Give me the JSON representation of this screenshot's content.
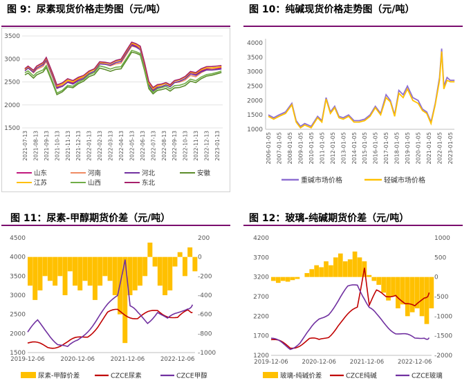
{
  "charts": [
    {
      "title": "图 9：尿素现货价格走势图（元/吨）",
      "chart_data": {
        "type": "line",
        "ylim": [
          1500,
          3500
        ],
        "yticks": [
          1500,
          2000,
          2500,
          3000,
          3500
        ],
        "xticks": [
          "2021-07-13",
          "2021-08-13",
          "2021-09-13",
          "2021-10-13",
          "2021-11-13",
          "2021-12-13",
          "2022-01-13",
          "2022-02-13",
          "2022-03-13",
          "2022-04-13",
          "2022-05-13",
          "2022-06-13",
          "2022-07-13",
          "2022-08-13",
          "2022-09-13",
          "2022-10-13",
          "2022-11-13",
          "2022-12-13",
          "2023-01-13"
        ],
        "grid": true,
        "legend_position": "bottom",
        "x": [
          0,
          0.3,
          0.8,
          1.1,
          1.7,
          2.0,
          2.6,
          3.0,
          3.5,
          4.0,
          4.5,
          5.0,
          5.5,
          6.0,
          6.5,
          7.0,
          7.5,
          8.0,
          8.5,
          9.0,
          9.5,
          10.0,
          10.4,
          10.8,
          11.2,
          11.6,
          12.0,
          12.4,
          12.8,
          13.2,
          13.6,
          14.0,
          14.5,
          15.0,
          15.5,
          16.0,
          16.5,
          17.0,
          17.5,
          18.0,
          18.4
        ],
        "base": [
          2750,
          2800,
          2700,
          2780,
          2850,
          2950,
          2600,
          2350,
          2400,
          2500,
          2470,
          2550,
          2600,
          2700,
          2750,
          2900,
          2880,
          2850,
          2900,
          2920,
          3100,
          3280,
          3250,
          3200,
          2850,
          2450,
          2330,
          2400,
          2420,
          2450,
          2400,
          2480,
          2500,
          2550,
          2650,
          2620,
          2700,
          2750,
          2760,
          2780,
          2800
        ],
        "series": [
          {
            "name": "山东",
            "color": "#c0177d",
            "offset": 30
          },
          {
            "name": "河南",
            "color": "#ef8a62",
            "offset": 15
          },
          {
            "name": "河北",
            "color": "#7030a0",
            "offset": 0
          },
          {
            "name": "安徽",
            "color": "#5b8c2a",
            "offset": -110
          },
          {
            "name": "江苏",
            "color": "#ffc000",
            "offset": 40
          },
          {
            "name": "山西",
            "color": "#70ad47",
            "offset": -70
          },
          {
            "name": "东北",
            "color": "#a6206a",
            "offset": 60
          }
        ]
      }
    },
    {
      "title": "图 10：纯碱现货价格走势图（元/吨）",
      "chart_data": {
        "type": "line",
        "ylim": [
          1000,
          4000
        ],
        "yticks": [
          1000,
          1500,
          2000,
          2500,
          3000,
          3500,
          4000
        ],
        "xticks": [
          "2006-01-05",
          "2007-01-05",
          "2008-01-05",
          "2009-01-05",
          "2010-01-05",
          "2011-01-05",
          "2012-01-05",
          "2013-01-05",
          "2014-01-05",
          "2015-01-05",
          "2016-01-05",
          "2017-01-05",
          "2018-01-05",
          "2019-01-05",
          "2020-01-05",
          "2021-01-05",
          "2022-01-05",
          "2023-01-05"
        ],
        "grid": false,
        "legend_position": "bottom",
        "x": [
          0,
          0.5,
          1.0,
          1.6,
          2.2,
          2.6,
          3.0,
          3.4,
          4.0,
          4.6,
          5.0,
          5.4,
          5.8,
          6.2,
          6.6,
          7.0,
          7.5,
          8.0,
          8.5,
          9.0,
          9.5,
          10.0,
          10.5,
          11.0,
          11.4,
          11.8,
          12.2,
          12.6,
          13.0,
          13.5,
          14.0,
          14.4,
          14.8,
          15.2,
          15.6,
          16.0,
          16.2,
          16.4,
          16.7,
          17.0,
          17.4
        ],
        "series": [
          {
            "name": "重碱市场价格",
            "color": "#8e6fd1",
            "values": [
              1500,
              1400,
              1500,
              1600,
              1900,
              1300,
              1100,
              1200,
              1100,
              1450,
              1300,
              2100,
              1600,
              1800,
              1450,
              1400,
              1500,
              1300,
              1300,
              1350,
              1500,
              1800,
              1550,
              2200,
              2000,
              1500,
              2350,
              2200,
              2500,
              2100,
              2000,
              1700,
              1600,
              1250,
              1900,
              2800,
              3800,
              2500,
              2800,
              2700,
              2700
            ]
          },
          {
            "name": "轻碱市场价格",
            "color": "#ffc000",
            "values": [
              1450,
              1350,
              1450,
              1550,
              1850,
              1250,
              1050,
              1150,
              1050,
              1400,
              1250,
              2050,
              1550,
              1750,
              1400,
              1350,
              1450,
              1250,
              1250,
              1300,
              1450,
              1750,
              1500,
              2100,
              1950,
              1450,
              2250,
              2100,
              2400,
              2000,
              1900,
              1650,
              1550,
              1200,
              1850,
              2700,
              3700,
              2400,
              2700,
              2650,
              2650
            ]
          }
        ]
      }
    },
    {
      "title": "图 11：尿素-甲醇期货价差（元/吨）",
      "chart_data": {
        "type": "bar+line",
        "ylim_left": [
          1500,
          4500
        ],
        "yticks_left": [
          1500,
          2000,
          2500,
          3000,
          3500,
          4000,
          4500
        ],
        "ylim_right": [
          -1000,
          200
        ],
        "yticks_right": [
          -1000,
          -800,
          -600,
          -400,
          -200,
          0,
          200
        ],
        "xticks": [
          "2019-12-06",
          "2020-12-06",
          "2021-12-06",
          "2022-12-06"
        ],
        "xlim": [
          0,
          3.35
        ],
        "legend_position": "bottom",
        "spread": {
          "name": "尿素-甲醇价差",
          "color": "#ffc000",
          "x": [
            0,
            0.1,
            0.2,
            0.3,
            0.4,
            0.5,
            0.6,
            0.7,
            0.8,
            0.9,
            1.0,
            1.1,
            1.2,
            1.3,
            1.4,
            1.5,
            1.6,
            1.7,
            1.8,
            1.9,
            2.0,
            2.1,
            2.2,
            2.3,
            2.4,
            2.5,
            2.6,
            2.7,
            2.8,
            2.9,
            3.0,
            3.1,
            3.2,
            3.3
          ],
          "values": [
            -300,
            -450,
            -350,
            -200,
            -250,
            -300,
            -200,
            -400,
            -150,
            -300,
            -350,
            -250,
            -300,
            -450,
            -300,
            -200,
            -250,
            -400,
            -600,
            -900,
            -400,
            -350,
            -300,
            -200,
            150,
            -100,
            -300,
            -400,
            -350,
            -100,
            50,
            -200,
            100,
            -150
          ]
        },
        "series": [
          {
            "name": "CZCE尿素",
            "color": "#c00000",
            "axis": "left",
            "x": [
              0,
              0.2,
              0.4,
              0.6,
              0.8,
              1.0,
              1.2,
              1.4,
              1.6,
              1.8,
              2.0,
              2.2,
              2.4,
              2.6,
              2.8,
              3.0,
              3.2,
              3.3
            ],
            "values": [
              1750,
              1700,
              1650,
              1700,
              1750,
              1850,
              1950,
              2200,
              2500,
              2600,
              2500,
              2400,
              2500,
              2600,
              2500,
              2400,
              2550,
              2550
            ]
          },
          {
            "name": "CZCE甲醇",
            "color": "#7030a0",
            "axis": "left",
            "x": [
              0,
              0.2,
              0.4,
              0.6,
              0.8,
              1.0,
              1.2,
              1.4,
              1.6,
              1.8,
              1.95,
              2.05,
              2.2,
              2.4,
              2.6,
              2.8,
              3.0,
              3.2,
              3.3
            ],
            "values": [
              2000,
              2300,
              2050,
              1750,
              1600,
              1800,
              2100,
              2400,
              2700,
              3000,
              4000,
              2700,
              2500,
              2300,
              2600,
              2350,
              2500,
              2700,
              2750
            ]
          }
        ]
      }
    },
    {
      "title": "图 12：玻璃-纯碱期货价差（元/吨）",
      "chart_data": {
        "type": "bar+line",
        "ylim_left": [
          1200,
          4200
        ],
        "yticks_left": [
          1200,
          1700,
          2200,
          2700,
          3200,
          3700,
          4200
        ],
        "ylim_right": [
          -2000,
          1000
        ],
        "yticks_right": [
          -2000,
          -1500,
          -1000,
          -500,
          0,
          500,
          1000
        ],
        "xticks": [
          "2019-12-06",
          "2020-12-06",
          "2021-12-06",
          "2022-12-06"
        ],
        "xlim": [
          0,
          3.35
        ],
        "legend_position": "bottom",
        "spread": {
          "name": "玻璃-纯碱价差",
          "color": "#ffc000",
          "x": [
            0,
            0.1,
            0.2,
            0.3,
            0.4,
            0.5,
            0.6,
            0.7,
            0.8,
            0.9,
            1.0,
            1.1,
            1.2,
            1.3,
            1.4,
            1.5,
            1.6,
            1.7,
            1.8,
            1.9,
            2.0,
            2.1,
            2.2,
            2.3,
            2.4,
            2.5,
            2.6,
            2.7,
            2.8,
            2.9,
            3.0,
            3.1,
            3.2,
            3.3
          ],
          "values": [
            -100,
            -150,
            -100,
            -120,
            -80,
            -50,
            0,
            100,
            200,
            300,
            250,
            400,
            300,
            500,
            600,
            400,
            450,
            650,
            500,
            400,
            50,
            -100,
            -200,
            -400,
            -600,
            -500,
            -800,
            -700,
            -1000,
            -900,
            -800,
            -1000,
            -1200,
            -800
          ]
        },
        "series": [
          {
            "name": "CZCE纯碱",
            "color": "#c00000",
            "axis": "left",
            "x": [
              0,
              0.2,
              0.4,
              0.6,
              0.8,
              1.0,
              1.2,
              1.4,
              1.6,
              1.8,
              1.95,
              2.05,
              2.2,
              2.4,
              2.6,
              2.8,
              3.0,
              3.2,
              3.3
            ],
            "values": [
              1600,
              1500,
              1400,
              1500,
              1600,
              1550,
              1700,
              2000,
              2200,
              2400,
              3500,
              2500,
              2800,
              2700,
              2800,
              2500,
              2400,
              2700,
              2800
            ]
          },
          {
            "name": "CZCE玻璃",
            "color": "#7030a0",
            "axis": "left",
            "x": [
              0,
              0.2,
              0.4,
              0.6,
              0.8,
              1.0,
              1.2,
              1.4,
              1.6,
              1.8,
              1.95,
              2.05,
              2.2,
              2.4,
              2.6,
              2.8,
              3.0,
              3.2,
              3.3
            ],
            "values": [
              1600,
              1500,
              1400,
              1550,
              1800,
              2100,
              2300,
              2600,
              2900,
              3000,
              2700,
              2400,
              2200,
              2000,
              1800,
              1700,
              1600,
              1700,
              1650
            ]
          }
        ]
      }
    }
  ]
}
